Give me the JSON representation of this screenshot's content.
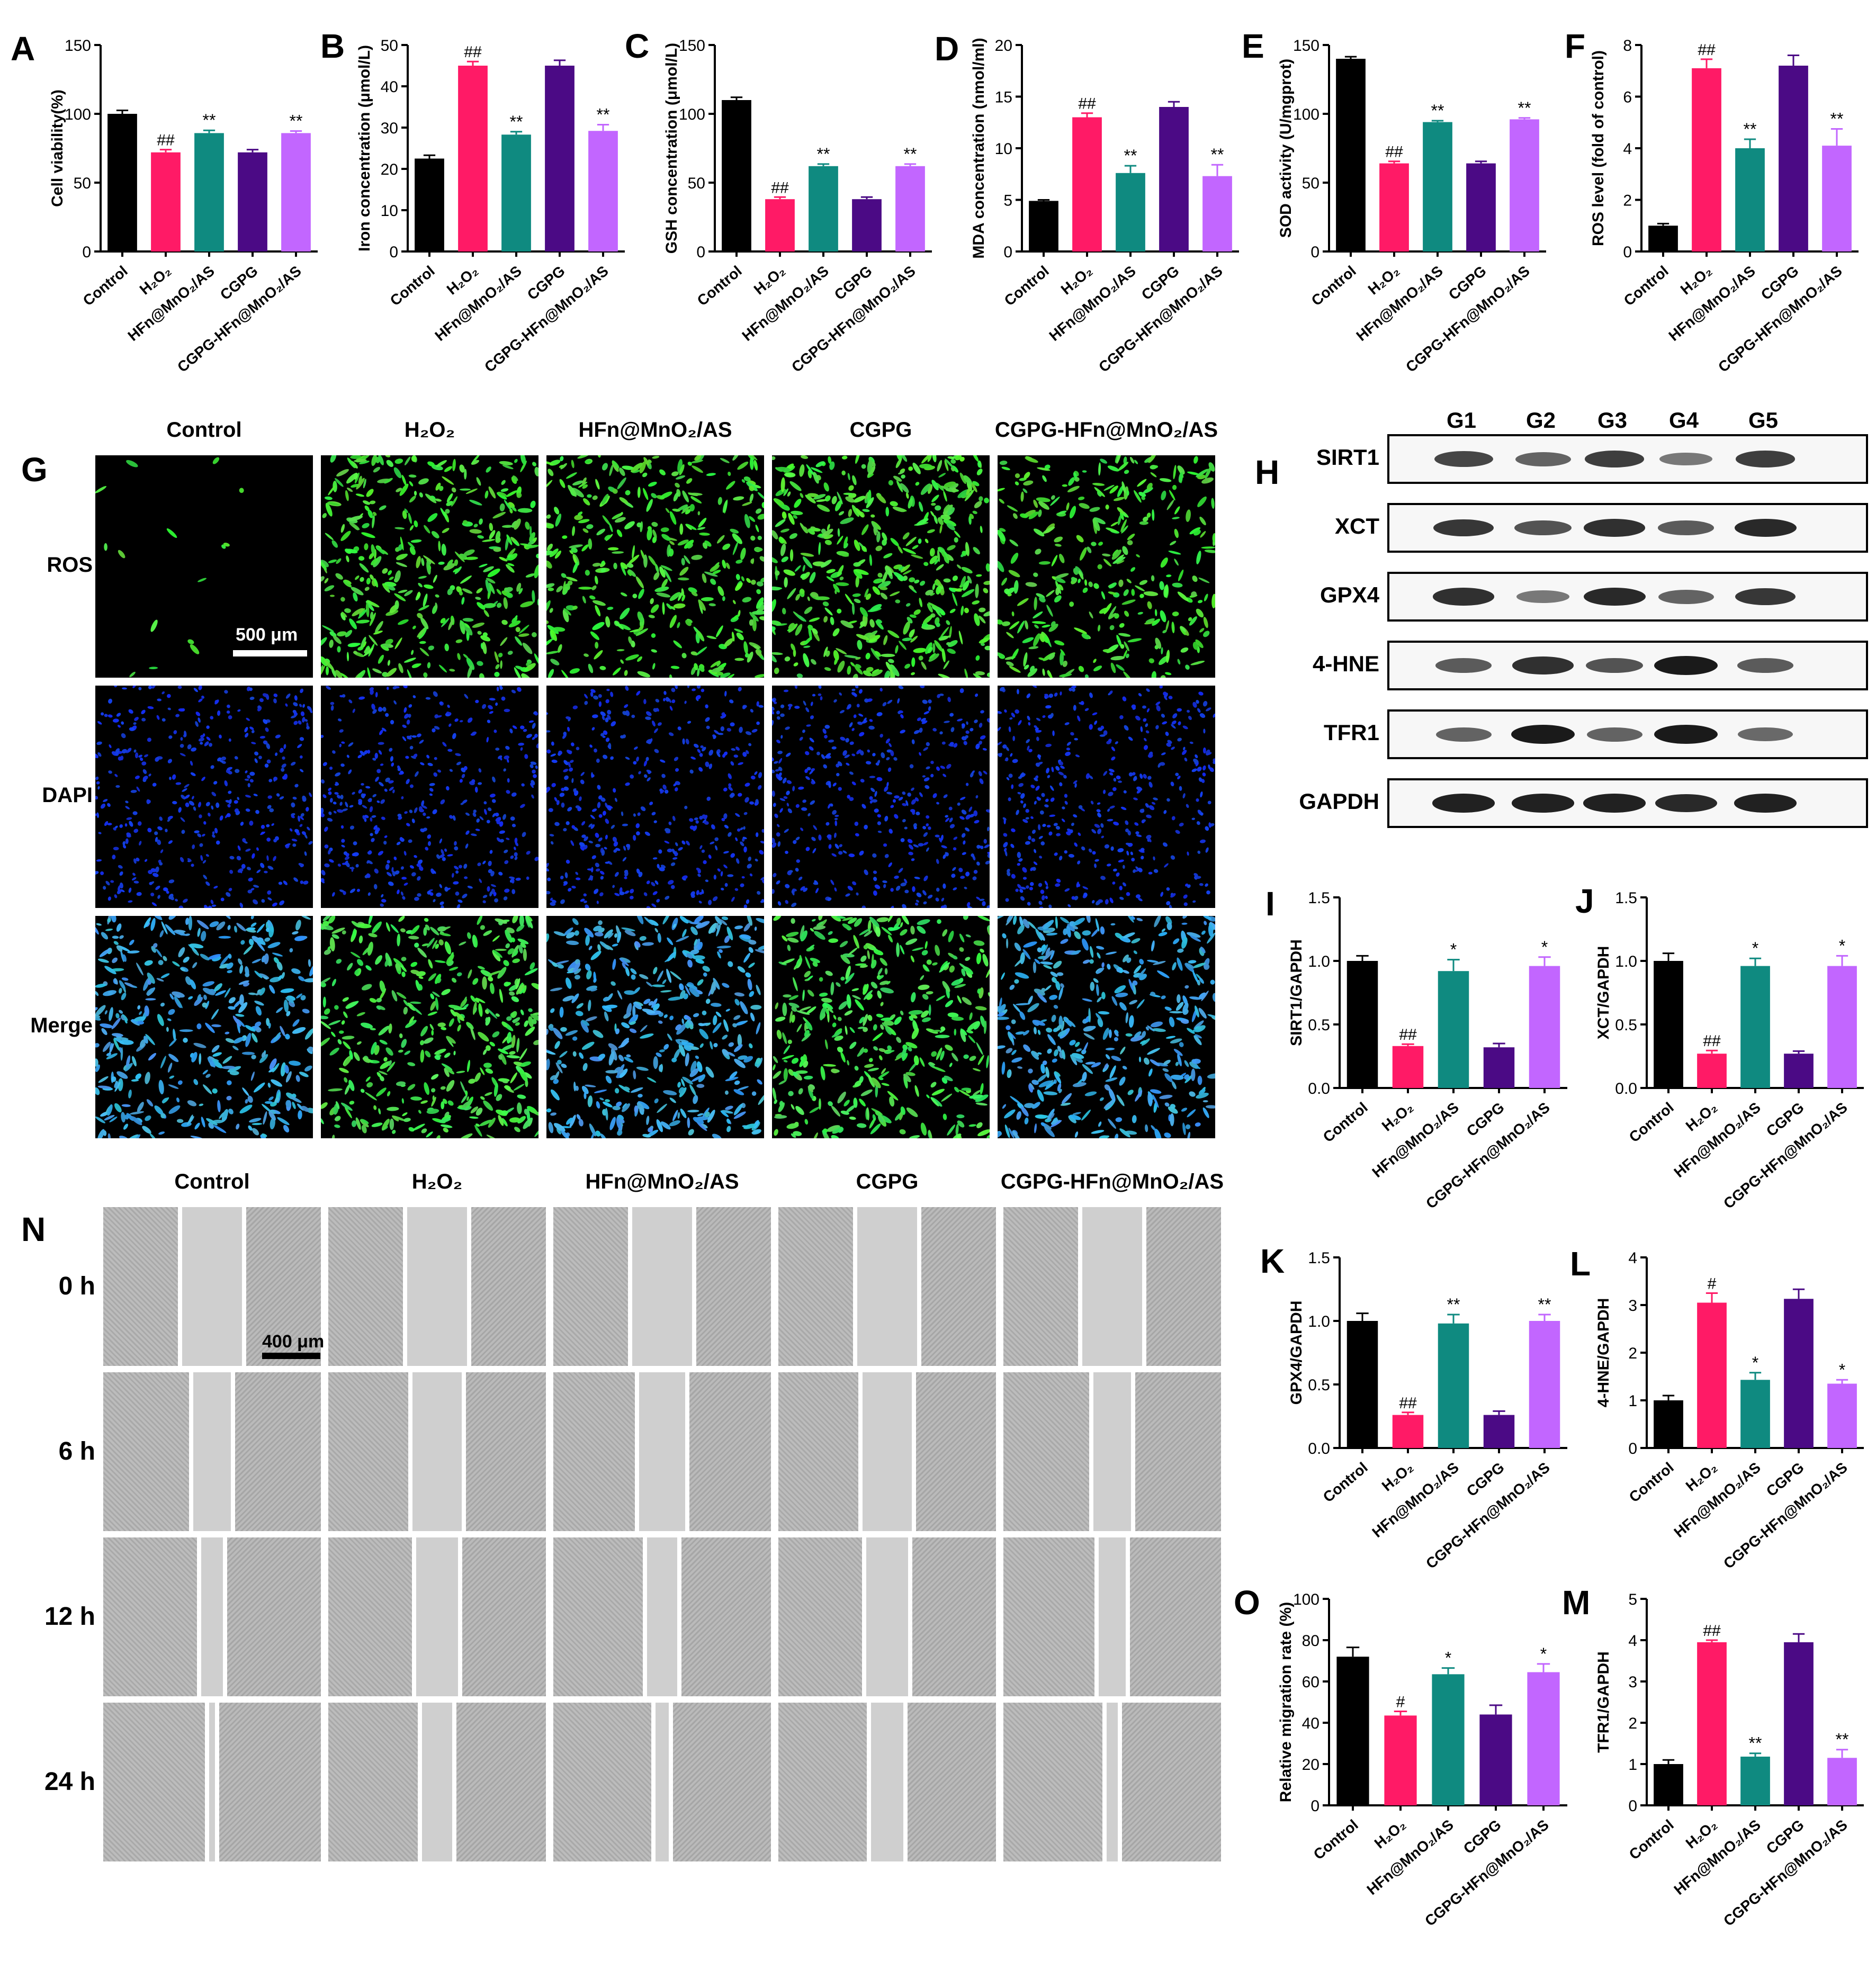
{
  "groups": [
    "Control",
    "H₂O₂",
    "HFn@MnO₂/AS",
    "CGPG",
    "CGPG-HFn@MnO₂/AS"
  ],
  "colors": {
    "control": "#000000",
    "h2o2": "#ff1a66",
    "hfn": "#0f8a80",
    "cgpg": "#4b0a85",
    "cgpg_hfn": "#c266ff"
  },
  "panels": {
    "A": "A",
    "B": "B",
    "C": "C",
    "D": "D",
    "E": "E",
    "F": "F",
    "G": "G",
    "H": "H",
    "I": "I",
    "J": "J",
    "K": "K",
    "L": "L",
    "M": "M",
    "N": "N",
    "O": "O"
  },
  "panel_g": {
    "columns": [
      "Control",
      "H₂O₂",
      "HFn@MnO₂/AS",
      "CGPG",
      "CGPG-HFn@MnO₂/AS"
    ],
    "rows": [
      "ROS",
      "DAPI",
      "Merge"
    ],
    "scale_label": "500 μm"
  },
  "panel_h": {
    "lanes": [
      "G1",
      "G2",
      "G3",
      "G4",
      "G5"
    ],
    "proteins": [
      "SIRT1",
      "XCT",
      "GPX4",
      "4-HNE",
      "TFR1",
      "GAPDH"
    ],
    "intensity": [
      [
        0.7,
        0.5,
        0.75,
        0.35,
        0.75
      ],
      [
        0.8,
        0.6,
        0.85,
        0.55,
        0.9
      ],
      [
        0.85,
        0.35,
        0.9,
        0.5,
        0.8
      ],
      [
        0.55,
        0.85,
        0.6,
        1.0,
        0.55
      ],
      [
        0.5,
        1.0,
        0.5,
        1.0,
        0.45
      ],
      [
        0.95,
        0.95,
        0.95,
        0.9,
        0.95
      ]
    ]
  },
  "panel_n": {
    "columns": [
      "Control",
      "H₂O₂",
      "HFn@MnO₂/AS",
      "CGPG",
      "CGPG-HFn@MnO₂/AS"
    ],
    "rows": [
      "0 h",
      "6 h",
      "12 h",
      "24 h"
    ],
    "scale_label": "400 μm",
    "gap_fraction": [
      [
        0.55,
        0.55,
        0.55,
        0.55,
        0.55
      ],
      [
        0.35,
        0.45,
        0.42,
        0.45,
        0.35
      ],
      [
        0.2,
        0.38,
        0.28,
        0.38,
        0.25
      ],
      [
        0.05,
        0.28,
        0.12,
        0.3,
        0.1
      ]
    ]
  },
  "chart_data": [
    {
      "id": "A",
      "type": "bar",
      "ylabel": "Cell viability(%)",
      "ylim": [
        0,
        150
      ],
      "yticks": [
        0,
        50,
        100,
        150
      ],
      "values": [
        100,
        72,
        86,
        72,
        86
      ],
      "errors": [
        2.5,
        2,
        2,
        2,
        1.5
      ],
      "annotations": [
        "",
        "##",
        "**",
        "",
        "**"
      ]
    },
    {
      "id": "B",
      "type": "bar",
      "ylabel": "Iron concentration (μmol/L)",
      "ylim": [
        0,
        50
      ],
      "yticks": [
        0,
        10,
        20,
        30,
        40,
        50
      ],
      "values": [
        22.5,
        45,
        28.3,
        45,
        29.2
      ],
      "errors": [
        0.8,
        1,
        0.7,
        1.3,
        1.5
      ],
      "annotations": [
        "",
        "##",
        "**",
        "",
        "**"
      ]
    },
    {
      "id": "C",
      "type": "bar",
      "ylabel": "GSH concentration (μmol/L)",
      "ylim": [
        0,
        150
      ],
      "yticks": [
        0,
        50,
        100,
        150
      ],
      "values": [
        110,
        38,
        62,
        38,
        62
      ],
      "errors": [
        2,
        1.5,
        1.5,
        1.5,
        1.5
      ],
      "annotations": [
        "",
        "##",
        "**",
        "",
        "**"
      ]
    },
    {
      "id": "D",
      "type": "bar",
      "ylabel": "MDA concentration (nmol/ml)",
      "ylim": [
        0,
        20
      ],
      "yticks": [
        0,
        5,
        10,
        15,
        20
      ],
      "values": [
        4.9,
        13,
        7.6,
        14,
        7.3
      ],
      "errors": [
        0.1,
        0.4,
        0.7,
        0.5,
        1.1
      ],
      "annotations": [
        "",
        "##",
        "**",
        "",
        "**"
      ]
    },
    {
      "id": "E",
      "type": "bar",
      "ylabel": "SOD activity (U/mgprot)",
      "ylim": [
        0,
        150
      ],
      "yticks": [
        0,
        50,
        100,
        150
      ],
      "values": [
        140,
        64,
        94,
        64,
        96
      ],
      "errors": [
        1.5,
        1.5,
        1,
        1.5,
        1
      ],
      "annotations": [
        "",
        "##",
        "**",
        "",
        "**"
      ]
    },
    {
      "id": "F",
      "type": "bar",
      "ylabel": "ROS level (fold of control)",
      "ylim": [
        0,
        8
      ],
      "yticks": [
        0,
        2,
        4,
        6,
        8
      ],
      "values": [
        1,
        7.1,
        4,
        7.2,
        4.1
      ],
      "errors": [
        0.08,
        0.35,
        0.35,
        0.4,
        0.65
      ],
      "annotations": [
        "",
        "##",
        "**",
        "",
        "**"
      ]
    },
    {
      "id": "I",
      "type": "bar",
      "ylabel": "SIRT1/GAPDH",
      "ylim": [
        0,
        1.5
      ],
      "yticks": [
        0,
        0.5,
        1.0,
        1.5
      ],
      "ytick_labels": [
        "0.0",
        "0.5",
        "1.0",
        "1.5"
      ],
      "values": [
        1.0,
        0.33,
        0.92,
        0.32,
        0.96
      ],
      "errors": [
        0.04,
        0.015,
        0.09,
        0.03,
        0.07
      ],
      "annotations": [
        "",
        "##",
        "*",
        "",
        "*"
      ]
    },
    {
      "id": "J",
      "type": "bar",
      "ylabel": "XCT/GAPDH",
      "ylim": [
        0,
        1.5
      ],
      "yticks": [
        0,
        0.5,
        1.0,
        1.5
      ],
      "ytick_labels": [
        "0.0",
        "0.5",
        "1.0",
        "1.5"
      ],
      "values": [
        1.0,
        0.27,
        0.96,
        0.27,
        0.96
      ],
      "errors": [
        0.06,
        0.025,
        0.06,
        0.02,
        0.08
      ],
      "annotations": [
        "",
        "##",
        "*",
        "",
        "*"
      ]
    },
    {
      "id": "K",
      "type": "bar",
      "ylabel": "GPX4/GAPDH",
      "ylim": [
        0,
        1.5
      ],
      "yticks": [
        0,
        0.5,
        1.0,
        1.5
      ],
      "ytick_labels": [
        "0.0",
        "0.5",
        "1.0",
        "1.5"
      ],
      "values": [
        1.0,
        0.26,
        0.98,
        0.26,
        1.0
      ],
      "errors": [
        0.06,
        0.02,
        0.07,
        0.03,
        0.05
      ],
      "annotations": [
        "",
        "##",
        "**",
        "",
        "**"
      ]
    },
    {
      "id": "L",
      "type": "bar",
      "ylabel": "4-HNE/GAPDH",
      "ylim": [
        0,
        4
      ],
      "yticks": [
        0,
        1,
        2,
        3,
        4
      ],
      "values": [
        1.0,
        3.05,
        1.43,
        3.13,
        1.35
      ],
      "errors": [
        0.1,
        0.2,
        0.15,
        0.2,
        0.08
      ],
      "annotations": [
        "",
        "#",
        "*",
        "",
        "*"
      ]
    },
    {
      "id": "M",
      "type": "bar",
      "ylabel": "TFR1/GAPDH",
      "ylim": [
        0,
        5
      ],
      "yticks": [
        0,
        1,
        2,
        3,
        4,
        5
      ],
      "values": [
        1.0,
        3.95,
        1.18,
        3.95,
        1.15
      ],
      "errors": [
        0.1,
        0.05,
        0.08,
        0.2,
        0.2
      ],
      "annotations": [
        "",
        "##",
        "**",
        "",
        "**"
      ]
    },
    {
      "id": "O",
      "type": "bar",
      "ylabel": "Relative migration rate (%)",
      "ylim": [
        0,
        100
      ],
      "yticks": [
        0,
        20,
        40,
        60,
        80,
        100
      ],
      "values": [
        72,
        43.5,
        63.5,
        44,
        64.5
      ],
      "errors": [
        4.5,
        2,
        3,
        4.5,
        4
      ],
      "annotations": [
        "",
        "#",
        "*",
        "",
        "*"
      ]
    }
  ]
}
